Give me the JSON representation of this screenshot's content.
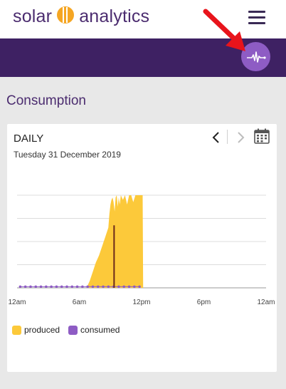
{
  "header": {
    "logo_left": "solar",
    "logo_right": "analytics",
    "menu_icon": "hamburger-icon",
    "pulse_icon": "pulse-icon",
    "colors": {
      "brand": "#4b2c6f",
      "bar": "#3e2163",
      "pulse": "#8e5cc4",
      "sun": "#f5a623"
    }
  },
  "page": {
    "title": "Consumption"
  },
  "card": {
    "period": "DAILY",
    "date": "Tuesday 31 December 2019",
    "prev_icon": "chevron-left-icon",
    "next_icon": "chevron-right-icon",
    "calendar_icon": "calendar-icon"
  },
  "legend": {
    "produced": "produced",
    "consumed": "consumed"
  },
  "chart_data": {
    "type": "area",
    "x_ticks": [
      "12am",
      "6am",
      "12pm",
      "6pm",
      "12am"
    ],
    "xlim_hours": [
      0,
      24
    ],
    "ylim": [
      0,
      4
    ],
    "grid": true,
    "legend_position": "bottom-left",
    "series": [
      {
        "name": "produced",
        "color": "#fcc93a",
        "x_hours": [
          6.7,
          7.0,
          7.3,
          7.6,
          7.9,
          8.2,
          8.5,
          8.8,
          8.9,
          9.0,
          9.1,
          9.2,
          9.3,
          9.4,
          9.5,
          9.6,
          9.7,
          9.8,
          9.9,
          10.0,
          10.2,
          10.4,
          10.6,
          10.8,
          11.0,
          11.2,
          11.4,
          11.6,
          11.8,
          12.0,
          12.1,
          12.15
        ],
        "values": [
          0,
          0.3,
          0.7,
          1.1,
          1.4,
          1.8,
          2.2,
          2.6,
          3.2,
          3.6,
          3.8,
          3.9,
          3.7,
          3.3,
          3.9,
          4.0,
          3.5,
          3.9,
          3.6,
          4.0,
          3.8,
          4.0,
          3.6,
          4.0,
          4.0,
          3.7,
          4.0,
          4.0,
          4.0,
          4.0,
          4.0,
          0
        ]
      },
      {
        "name": "consumed",
        "color": "#8e5cc4",
        "x_hours": [
          0.3,
          0.8,
          1.3,
          1.8,
          2.3,
          2.8,
          3.3,
          3.8,
          4.3,
          4.8,
          5.3,
          5.8,
          6.3,
          6.8,
          7.3,
          7.8,
          8.3,
          8.8,
          9.3,
          9.8,
          10.3,
          10.8,
          11.3,
          11.8
        ],
        "values": [
          0.05,
          0.05,
          0.05,
          0.05,
          0.05,
          0.05,
          0.05,
          0.05,
          0.05,
          0.05,
          0.05,
          0.05,
          0.05,
          0.05,
          0.05,
          0.05,
          0.05,
          0.05,
          0.05,
          0.05,
          0.05,
          0.05,
          0.05,
          0.05
        ]
      }
    ],
    "marker": {
      "x_hour": 9.35,
      "value": 2.7,
      "color": "#6b2a1a"
    }
  }
}
